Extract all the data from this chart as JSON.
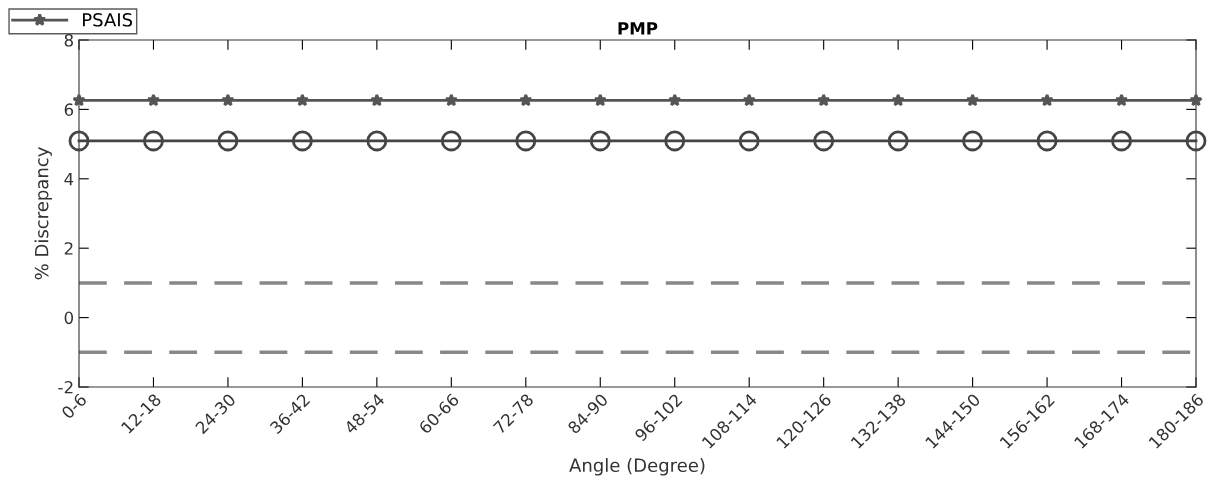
{
  "chart_data": {
    "type": "line",
    "title": "PMP",
    "xlabel": "Angle (Degree)",
    "ylabel": "% Discrepancy",
    "categories": [
      "0-6",
      "12-18",
      "24-30",
      "36-42",
      "48-54",
      "60-66",
      "72-78",
      "84-90",
      "96-102",
      "108-114",
      "120-126",
      "132-138",
      "144-150",
      "156-162",
      "168-174",
      "180-186"
    ],
    "series": [
      {
        "name": "PSAIS",
        "color": "#555555",
        "marker": "star",
        "values": [
          6.26,
          6.26,
          6.26,
          6.26,
          6.26,
          6.26,
          6.26,
          6.26,
          6.26,
          6.26,
          6.26,
          6.26,
          6.26,
          6.26,
          6.26,
          6.26
        ]
      },
      {
        "color": "#444444",
        "marker": "circle",
        "values": [
          5.09,
          5.09,
          5.09,
          5.09,
          5.09,
          5.09,
          5.09,
          5.09,
          5.09,
          5.09,
          5.09,
          5.09,
          5.09,
          5.09,
          5.09,
          5.09
        ]
      }
    ],
    "ref_lines": [
      {
        "axis": "y",
        "value": 1,
        "color": "#888888",
        "line_style": "dashed"
      },
      {
        "axis": "y",
        "value": -1,
        "color": "#888888",
        "line_style": "dashed"
      }
    ],
    "ylim": [
      -2,
      8
    ],
    "yticks": [
      -2,
      0,
      2,
      4,
      6,
      8
    ],
    "grid": false,
    "legend": "top left",
    "line_style": "solid"
  }
}
